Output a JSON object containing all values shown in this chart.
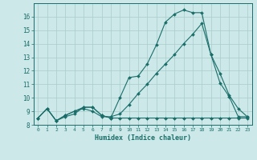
{
  "xlabel": "Humidex (Indice chaleur)",
  "bg_color": "#cce8e8",
  "grid_color": "#aacccc",
  "line_color": "#1a6e6a",
  "xlim": [
    -0.5,
    23.5
  ],
  "ylim": [
    8,
    17
  ],
  "yticks": [
    8,
    9,
    10,
    11,
    12,
    13,
    14,
    15,
    16
  ],
  "xticks": [
    0,
    1,
    2,
    3,
    4,
    5,
    6,
    7,
    8,
    9,
    10,
    11,
    12,
    13,
    14,
    15,
    16,
    17,
    18,
    19,
    20,
    21,
    22,
    23
  ],
  "line1_x": [
    0,
    1,
    2,
    3,
    4,
    5,
    6,
    7,
    8,
    9,
    10,
    11,
    12,
    13,
    14,
    15,
    16,
    17,
    18,
    19,
    20,
    21,
    22,
    23
  ],
  "line1_y": [
    8.5,
    9.2,
    8.3,
    8.6,
    8.8,
    9.3,
    9.3,
    8.7,
    8.5,
    10.0,
    11.5,
    11.6,
    12.5,
    13.9,
    15.6,
    16.2,
    16.5,
    16.3,
    16.3,
    13.2,
    11.1,
    10.1,
    8.6,
    8.6
  ],
  "line2_x": [
    0,
    1,
    2,
    3,
    4,
    5,
    6,
    7,
    8,
    9,
    10,
    11,
    12,
    13,
    14,
    15,
    16,
    17,
    18,
    19,
    20,
    21,
    22,
    23
  ],
  "line2_y": [
    8.5,
    9.2,
    8.3,
    8.7,
    9.0,
    9.3,
    9.3,
    8.7,
    8.5,
    8.5,
    8.5,
    8.5,
    8.5,
    8.5,
    8.5,
    8.5,
    8.5,
    8.5,
    8.5,
    8.5,
    8.5,
    8.5,
    8.5,
    8.5
  ],
  "line3_x": [
    0,
    1,
    2,
    3,
    4,
    5,
    6,
    7,
    8,
    9,
    10,
    11,
    12,
    13,
    14,
    15,
    16,
    17,
    18,
    19,
    20,
    21,
    22,
    23
  ],
  "line3_y": [
    8.5,
    9.2,
    8.3,
    8.7,
    9.0,
    9.2,
    9.0,
    8.6,
    8.6,
    8.8,
    9.5,
    10.3,
    11.0,
    11.8,
    12.5,
    13.2,
    14.0,
    14.7,
    15.5,
    13.2,
    11.8,
    10.2,
    9.2,
    8.6
  ]
}
